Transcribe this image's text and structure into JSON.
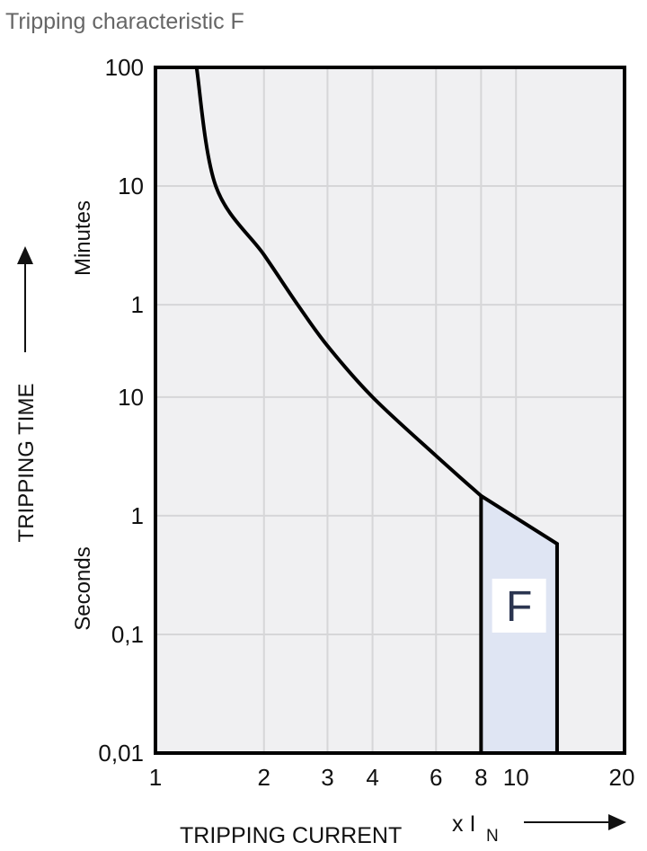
{
  "title": "Tripping characteristic F",
  "chart_data": {
    "type": "line",
    "title": "Tripping characteristic F",
    "xlabel": "TRIPPING CURRENT",
    "xunit": "x I",
    "xunit_sub": "N",
    "ylabel": "TRIPPING TIME",
    "x_scale": "log",
    "y_scale": "log",
    "xlim": [
      1,
      20
    ],
    "ylim_seconds": [
      0.01,
      6000
    ],
    "grid": true,
    "x_ticks": [
      {
        "value": 1,
        "label": "1"
      },
      {
        "value": 2,
        "label": "2"
      },
      {
        "value": 3,
        "label": "3"
      },
      {
        "value": 4,
        "label": "4"
      },
      {
        "value": 6,
        "label": "6"
      },
      {
        "value": 8,
        "label": "8"
      },
      {
        "value": 10,
        "label": "10"
      },
      {
        "value": 20,
        "label": "20"
      }
    ],
    "y_ticks": [
      {
        "seconds": 6000,
        "label": "100",
        "unit": "Minutes"
      },
      {
        "seconds": 600,
        "label": "10",
        "unit": "Minutes"
      },
      {
        "seconds": 60,
        "label": "1",
        "unit": "Minutes"
      },
      {
        "seconds": 10,
        "label": "10",
        "unit": "Seconds"
      },
      {
        "seconds": 1,
        "label": "1",
        "unit": "Seconds"
      },
      {
        "seconds": 0.1,
        "label": "0,1",
        "unit": "Seconds"
      },
      {
        "seconds": 0.01,
        "label": "0,01",
        "unit": "Seconds"
      }
    ],
    "y_group_labels": {
      "minutes": "Minutes",
      "seconds": "Seconds"
    },
    "thermal_curve": [
      {
        "x": 1.3,
        "t": 6000
      },
      {
        "x": 1.47,
        "t": 600
      },
      {
        "x": 2.0,
        "t": 158
      },
      {
        "x": 2.48,
        "t": 60
      },
      {
        "x": 3.0,
        "t": 27
      },
      {
        "x": 4.0,
        "t": 10
      },
      {
        "x": 6.0,
        "t": 3.2
      },
      {
        "x": 8.0,
        "t": 1.47
      }
    ],
    "magnetic_region": {
      "label": "F",
      "points": [
        {
          "x": 8.0,
          "t": 0.01
        },
        {
          "x": 8.0,
          "t": 1.47
        },
        {
          "x": 13.0,
          "t": 0.58
        },
        {
          "x": 13.0,
          "t": 0.01
        }
      ]
    },
    "colors": {
      "plot_bg": "#f0f0f2",
      "grid": "#d6d6d8",
      "region_fill": "#dfe5f3",
      "label_text": "#2b3550",
      "line": "#000000"
    }
  }
}
